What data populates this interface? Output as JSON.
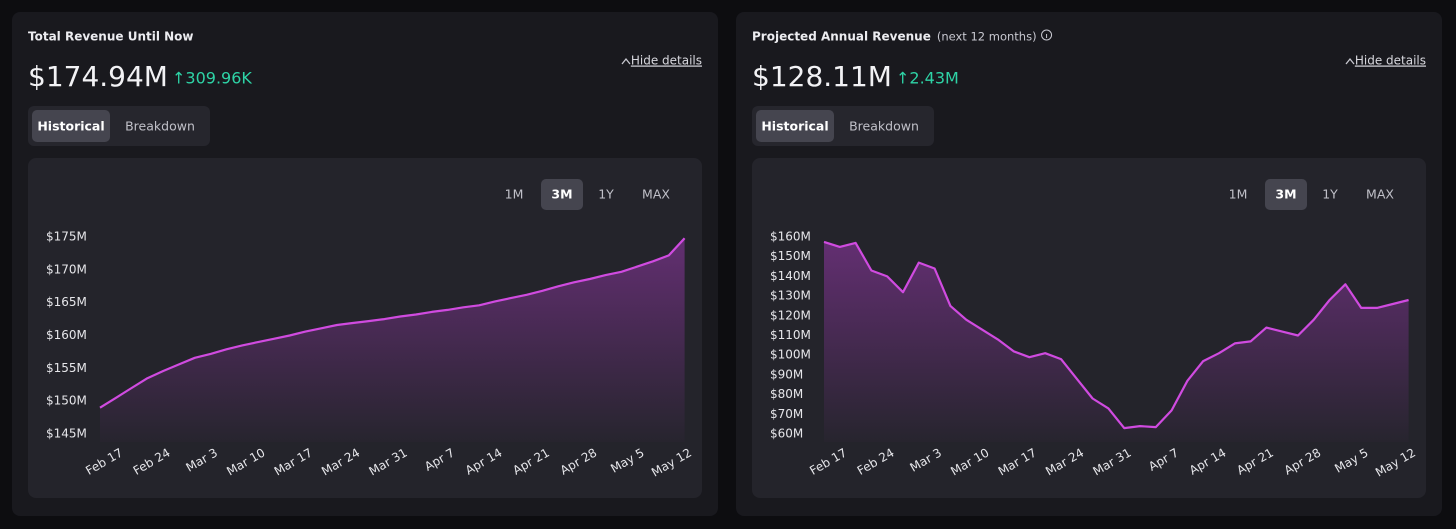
{
  "chart_data": [
    {
      "type": "line",
      "title": "Total Revenue Until Now",
      "headline": "$174.94M",
      "change": "↑309.96K",
      "toggle": "Hide details",
      "tabs": [
        "Historical",
        "Breakdown"
      ],
      "ranges": [
        "1M",
        "3M",
        "1Y",
        "MAX"
      ],
      "active_tab": "Historical",
      "active_range": "3M",
      "categories": [
        "Feb 17",
        null,
        null,
        "Feb 24",
        null,
        null,
        "Mar 3",
        null,
        null,
        "Mar 10",
        null,
        null,
        "Mar 17",
        null,
        null,
        "Mar 24",
        null,
        null,
        "Mar 31",
        null,
        null,
        "Apr 7",
        null,
        null,
        "Apr 14",
        null,
        null,
        "Apr 21",
        null,
        null,
        "Apr 28",
        null,
        null,
        "May 5",
        null,
        null,
        "May 12",
        null
      ],
      "values": [
        149,
        150.5,
        152,
        153.5,
        154.6,
        155.6,
        156.6,
        157.2,
        157.9,
        158.5,
        159,
        159.5,
        160,
        160.6,
        161.1,
        161.6,
        161.9,
        162.2,
        162.5,
        162.9,
        163.2,
        163.6,
        163.9,
        164.3,
        164.6,
        165.2,
        165.7,
        166.2,
        166.8,
        167.5,
        168.1,
        168.6,
        169.2,
        169.7,
        170.5,
        171.3,
        172.2,
        174.8
      ],
      "color": "#d04be0",
      "ylim": [
        145,
        175
      ],
      "yticks": [
        {
          "value": 145,
          "label": "$145M"
        },
        {
          "value": 150,
          "label": "$150M"
        },
        {
          "value": 155,
          "label": "$155M"
        },
        {
          "value": 160,
          "label": "$160M"
        },
        {
          "value": 165,
          "label": "$165M"
        },
        {
          "value": 170,
          "label": "$170M"
        },
        {
          "value": 175,
          "label": "$175M"
        }
      ]
    },
    {
      "type": "line",
      "title": "Projected Annual Revenue",
      "subtitle": "(next 12 months)",
      "headline": "$128.11M",
      "change": "↑2.43M",
      "toggle": "Hide details",
      "tabs": [
        "Historical",
        "Breakdown"
      ],
      "ranges": [
        "1M",
        "3M",
        "1Y",
        "MAX"
      ],
      "active_tab": "Historical",
      "active_range": "3M",
      "categories": [
        "Feb 17",
        null,
        null,
        "Feb 24",
        null,
        null,
        "Mar 3",
        null,
        null,
        "Mar 10",
        null,
        null,
        "Mar 17",
        null,
        null,
        "Mar 24",
        null,
        null,
        "Mar 31",
        null,
        null,
        "Apr 7",
        null,
        null,
        "Apr 14",
        null,
        null,
        "Apr 21",
        null,
        null,
        "Apr 28",
        null,
        null,
        "May 5",
        null,
        null,
        "May 12",
        null
      ],
      "values": [
        157.5,
        155,
        157,
        143,
        140,
        132,
        147,
        144,
        125,
        118,
        113,
        108,
        102,
        99,
        101,
        98,
        88,
        78,
        73,
        63,
        64,
        63.5,
        72,
        87,
        97,
        101,
        106,
        107,
        114,
        112,
        110,
        118,
        128,
        136,
        124,
        124,
        126,
        128
      ],
      "color": "#d04be0",
      "ylim": [
        60,
        160
      ],
      "yticks": [
        {
          "value": 60,
          "label": "$60M"
        },
        {
          "value": 70,
          "label": "$70M"
        },
        {
          "value": 80,
          "label": "$80M"
        },
        {
          "value": 90,
          "label": "$90M"
        },
        {
          "value": 100,
          "label": "$100M"
        },
        {
          "value": 110,
          "label": "$110M"
        },
        {
          "value": 120,
          "label": "$120M"
        },
        {
          "value": 130,
          "label": "$130M"
        },
        {
          "value": 140,
          "label": "$140M"
        },
        {
          "value": 150,
          "label": "$150M"
        },
        {
          "value": 160,
          "label": "$160M"
        }
      ]
    }
  ]
}
